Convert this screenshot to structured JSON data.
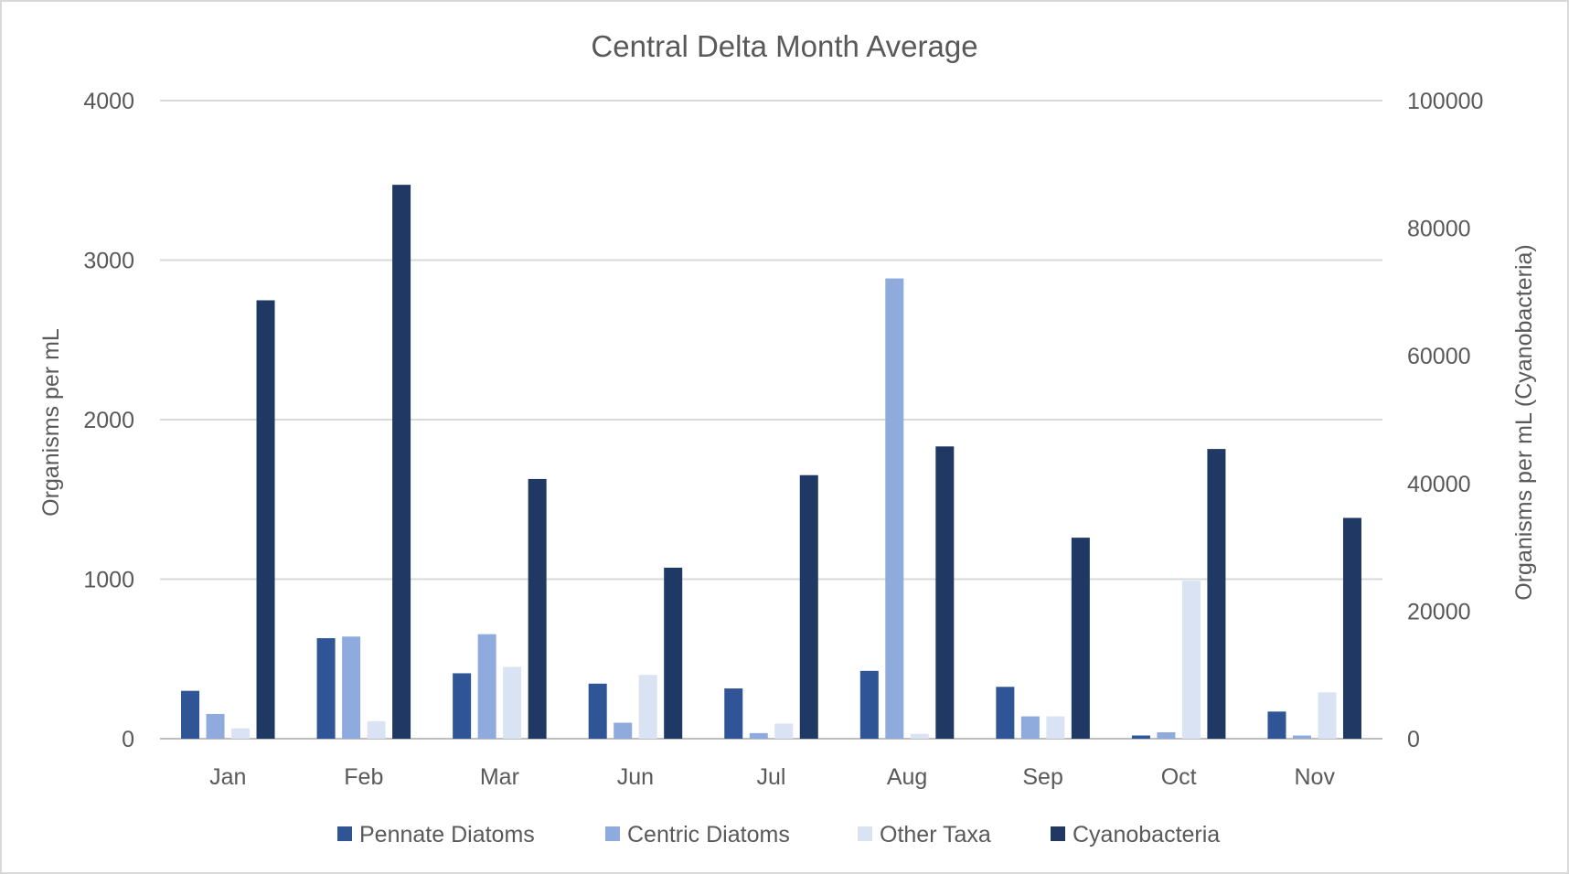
{
  "chart_data": {
    "type": "bar",
    "title": "Central Delta Month Average",
    "ylabel": "Organisms per mL",
    "y2label": "Organisms per mL (Cyanobacteria)",
    "ylim": [
      0,
      4000
    ],
    "y2lim": [
      0,
      100000
    ],
    "yticks": [
      0,
      1000,
      2000,
      3000,
      4000
    ],
    "y2ticks": [
      0,
      20000,
      40000,
      60000,
      80000,
      100000
    ],
    "grid": true,
    "legend": "bottom",
    "categories": [
      "Jan",
      "Feb",
      "Mar",
      "Jun",
      "Jul",
      "Aug",
      "Sep",
      "Oct",
      "Nov"
    ],
    "series": [
      {
        "name": "Pennate Diatoms",
        "axis": "left",
        "color": "#2f5597",
        "values": [
          300,
          630,
          410,
          345,
          315,
          425,
          325,
          20,
          170
        ]
      },
      {
        "name": "Centric Diatoms",
        "axis": "left",
        "color": "#8faadc",
        "values": [
          155,
          640,
          655,
          100,
          35,
          2885,
          140,
          40,
          20
        ]
      },
      {
        "name": "Other Taxa",
        "axis": "left",
        "color": "#dae3f3",
        "values": [
          65,
          110,
          450,
          400,
          95,
          30,
          140,
          990,
          290
        ]
      },
      {
        "name": "Cyanobacteria",
        "axis": "right",
        "color": "#203864",
        "values": [
          68700,
          86800,
          40700,
          26800,
          41300,
          45800,
          31500,
          45400,
          34600
        ]
      }
    ]
  }
}
